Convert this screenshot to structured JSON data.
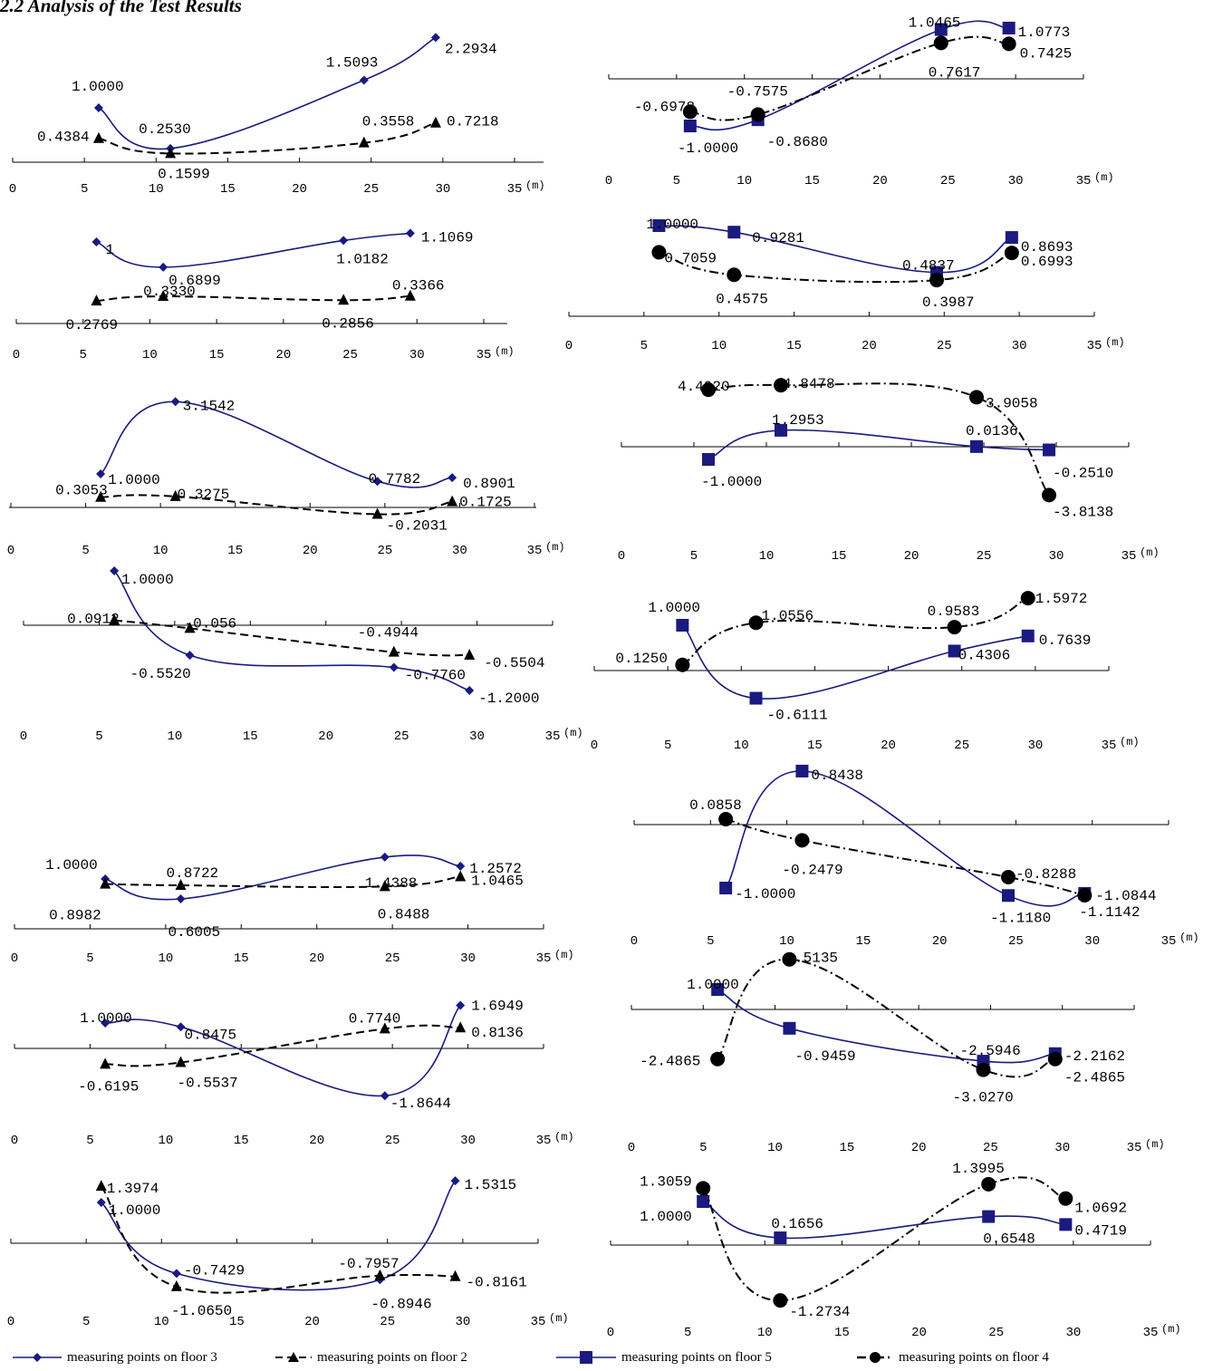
{
  "heading": "2.2 Analysis of the Test Results",
  "colors": {
    "solid": "#1a1a80",
    "dashed": "#000000"
  },
  "legend": [
    {
      "label": "measuring points on floor 3",
      "marker": "diamond",
      "line": "solid"
    },
    {
      "label": "measuring points on floor 2",
      "marker": "triangle",
      "line": "dashed"
    },
    {
      "label": "measuring points on floor 5",
      "marker": "square",
      "line": "solid"
    },
    {
      "label": "measuring points on floor 4",
      "marker": "circle",
      "line": "dashdot"
    }
  ],
  "chart_data": [
    {
      "type": "line",
      "xticks": [
        "0",
        "5",
        "10",
        "15",
        "20",
        "25",
        "30",
        "35"
      ],
      "unit": "(m)",
      "xlim": [
        0,
        35
      ],
      "series": [
        {
          "name": "measuring points on floor 3",
          "x": [
            6,
            11,
            24.5,
            29.5
          ],
          "y": [
            1.0,
            0.253,
            1.5093,
            2.2934
          ],
          "labels": [
            "1.0000",
            "0.2530",
            "1.5093",
            "2.2934"
          ]
        },
        {
          "name": "measuring points on floor 2",
          "x": [
            6,
            11,
            24.5,
            29.5
          ],
          "y": [
            0.4384,
            0.1599,
            0.3558,
            0.7218
          ],
          "labels": [
            "0.4384",
            "0.1599",
            "0.3558",
            "0.7218"
          ]
        }
      ]
    },
    {
      "type": "line",
      "xticks": [
        "0",
        "5",
        "10",
        "15",
        "20",
        "25",
        "30",
        "35"
      ],
      "unit": "(m)",
      "xlim": [
        0,
        35
      ],
      "series": [
        {
          "name": "measuring points on floor 3",
          "x": [
            6,
            11,
            24.5,
            29.5
          ],
          "y": [
            1,
            0.6899,
            1.0182,
            1.1069
          ],
          "labels": [
            "1",
            "0.6899",
            "1.0182",
            "1.1069"
          ]
        },
        {
          "name": "measuring points on floor 2",
          "x": [
            6,
            11,
            24.5,
            29.5
          ],
          "y": [
            0.2769,
            0.333,
            0.2856,
            0.3366
          ],
          "labels": [
            "0.2769",
            "0.3330",
            "0.2856",
            "0.3366"
          ]
        }
      ]
    },
    {
      "type": "line",
      "xticks": [
        "0",
        "5",
        "10",
        "15",
        "20",
        "25",
        "30",
        "35"
      ],
      "unit": "(m)",
      "xlim": [
        0,
        35
      ],
      "series": [
        {
          "name": "measuring points on floor 3",
          "x": [
            6,
            11,
            24.5,
            29.5
          ],
          "y": [
            1.0,
            3.1542,
            0.7782,
            0.8901
          ],
          "labels": [
            "1.0000",
            "3.1542",
            "0.7782",
            "0.8901"
          ]
        },
        {
          "name": "measuring points on floor 2",
          "x": [
            6,
            11,
            24.5,
            29.5
          ],
          "y": [
            0.3053,
            0.3275,
            -0.2031,
            0.1725
          ],
          "labels": [
            "0.3053",
            "0.3275",
            "-0.2031",
            "0.1725"
          ]
        }
      ]
    },
    {
      "type": "line",
      "xticks": [
        "0",
        "5",
        "10",
        "15",
        "20",
        "25",
        "30",
        "35"
      ],
      "unit": "(m)",
      "xlim": [
        0,
        35
      ],
      "series": [
        {
          "name": "measuring points on floor 3",
          "x": [
            6,
            11,
            24.5,
            29.5
          ],
          "y": [
            1.0,
            -0.552,
            -0.776,
            -1.2
          ],
          "labels": [
            "1.0000",
            "-0.5520",
            "-0.7760",
            "-1.2000"
          ]
        },
        {
          "name": "measuring points on floor 2",
          "x": [
            6,
            11,
            24.5,
            29.5
          ],
          "y": [
            0.0912,
            -0.056,
            -0.4944,
            -0.5504
          ],
          "labels": [
            "0.0912",
            "-0.056",
            "-0.4944",
            "-0.5504"
          ]
        }
      ]
    },
    {
      "type": "line",
      "xticks": [
        "0",
        "5",
        "10",
        "15",
        "20",
        "25",
        "30",
        "35"
      ],
      "unit": "(m)",
      "xlim": [
        0,
        35
      ],
      "series": [
        {
          "name": "measuring points on floor 3",
          "x": [
            6,
            11,
            24.5,
            29.5
          ],
          "y": [
            1.0,
            0.6005,
            1.4388,
            1.2572
          ],
          "labels": [
            "1.0000",
            "0.6005",
            "1.4388",
            "1.2572"
          ]
        },
        {
          "name": "measuring points on floor 2",
          "x": [
            6,
            11,
            24.5,
            29.5
          ],
          "y": [
            0.8982,
            0.8722,
            0.8488,
            1.0465
          ],
          "labels": [
            "0.8982",
            "0.8722",
            "0.8488",
            "1.0465"
          ]
        }
      ]
    },
    {
      "type": "line",
      "xticks": [
        "0",
        "5",
        "10",
        "15",
        "20",
        "25",
        "30",
        "35"
      ],
      "unit": "(m)",
      "xlim": [
        0,
        35
      ],
      "series": [
        {
          "name": "measuring points on floor 3",
          "x": [
            6,
            11,
            24.5,
            29.5
          ],
          "y": [
            1.0,
            0.8475,
            -1.8644,
            1.6949
          ],
          "labels": [
            "1.0000",
            "0.8475",
            "-1.8644",
            "1.6949"
          ]
        },
        {
          "name": "measuring points on floor 2",
          "x": [
            6,
            11,
            24.5,
            29.5
          ],
          "y": [
            -0.6195,
            -0.5537,
            0.774,
            0.8136
          ],
          "labels": [
            "-0.6195",
            "-0.5537",
            "0.7740",
            "0.8136"
          ]
        }
      ]
    },
    {
      "type": "line",
      "xticks": [
        "0",
        "5",
        "10",
        "15",
        "20",
        "25",
        "30",
        "35"
      ],
      "unit": "(m)",
      "xlim": [
        0,
        35
      ],
      "series": [
        {
          "name": "measuring points on floor 3",
          "x": [
            6,
            11,
            24.5,
            29.5
          ],
          "y": [
            1.0,
            -0.7429,
            -0.8946,
            1.5315
          ],
          "labels": [
            "1.0000",
            "-0.7429",
            "-0.8946",
            "1.5315"
          ]
        },
        {
          "name": "measuring points on floor 2",
          "x": [
            6,
            11,
            24.5,
            29.5
          ],
          "y": [
            1.3974,
            -1.065,
            -0.7957,
            -0.8161
          ],
          "labels": [
            "1.3974",
            "-1.0650",
            "-0.7957",
            "-0.8161"
          ]
        }
      ]
    },
    {
      "type": "line",
      "xticks": [
        "0",
        "5",
        "10",
        "15",
        "20",
        "25",
        "30",
        "35"
      ],
      "unit": "(m)",
      "xlim": [
        0,
        35
      ],
      "series": [
        {
          "name": "measuring points on floor 5",
          "x": [
            6,
            11,
            24.5,
            29.5
          ],
          "y": [
            -1.0,
            -0.868,
            1.0465,
            1.0773
          ],
          "labels": [
            "-1.0000",
            "-0.8680",
            "1.0465",
            "1.0773"
          ]
        },
        {
          "name": "measuring points on floor 4",
          "x": [
            6,
            11,
            24.5,
            29.5
          ],
          "y": [
            -0.6978,
            -0.7575,
            0.7617,
            0.7425
          ],
          "labels": [
            "-0.6978",
            "-0.7575",
            "0.7617",
            "0.7425"
          ]
        }
      ]
    },
    {
      "type": "line",
      "xticks": [
        "0",
        "5",
        "10",
        "15",
        "20",
        "25",
        "30",
        "35"
      ],
      "unit": "(m)",
      "xlim": [
        0,
        35
      ],
      "series": [
        {
          "name": "measuring points on floor 5",
          "x": [
            6,
            11,
            24.5,
            29.5
          ],
          "y": [
            1.0,
            0.9281,
            0.4837,
            0.8693
          ],
          "labels": [
            "1.0000",
            "0.9281",
            "0.4837",
            "0.8693"
          ]
        },
        {
          "name": "measuring points on floor 4",
          "x": [
            6,
            11,
            24.5,
            29.5
          ],
          "y": [
            0.7059,
            0.4575,
            0.3987,
            0.6993
          ],
          "labels": [
            "0.7059",
            "0.4575",
            "0.3987",
            "0.6993"
          ]
        }
      ]
    },
    {
      "type": "line",
      "xticks": [
        "0",
        "5",
        "10",
        "15",
        "20",
        "25",
        "30",
        "35"
      ],
      "unit": "(m)",
      "xlim": [
        0,
        35
      ],
      "series": [
        {
          "name": "measuring points on floor 5",
          "x": [
            6,
            11,
            24.5,
            29.5
          ],
          "y": [
            -1.0,
            1.2953,
            0.0136,
            -0.251
          ],
          "labels": [
            "-1.0000",
            "1.2953",
            "0.0136",
            "-0.2510"
          ]
        },
        {
          "name": "measuring points on floor 4",
          "x": [
            6,
            11,
            24.5,
            29.5
          ],
          "y": [
            4.492,
            4.8478,
            3.9058,
            -3.8138
          ],
          "labels": [
            "4.4920",
            "4.8478",
            "3.9058",
            "-3.8138"
          ]
        }
      ]
    },
    {
      "type": "line",
      "xticks": [
        "0",
        "5",
        "10",
        "15",
        "20",
        "25",
        "30",
        "35"
      ],
      "unit": "(m)",
      "xlim": [
        0,
        35
      ],
      "series": [
        {
          "name": "measuring points on floor 5",
          "x": [
            6,
            11,
            24.5,
            29.5
          ],
          "y": [
            1.0,
            -0.6111,
            0.4306,
            0.7639
          ],
          "labels": [
            "1.0000",
            "-0.6111",
            "0.4306",
            "0.7639"
          ]
        },
        {
          "name": "measuring points on floor 4",
          "x": [
            6,
            11,
            24.5,
            29.5
          ],
          "y": [
            0.125,
            1.0556,
            0.9583,
            1.5972
          ],
          "labels": [
            "0.1250",
            "1.0556",
            "0.9583",
            "1.5972"
          ]
        }
      ]
    },
    {
      "type": "line",
      "xticks": [
        "0",
        "5",
        "10",
        "15",
        "20",
        "25",
        "30",
        "35"
      ],
      "unit": "(m)",
      "xlim": [
        0,
        35
      ],
      "series": [
        {
          "name": "measuring points on floor 5",
          "x": [
            6,
            11,
            24.5,
            29.5
          ],
          "y": [
            -1.0,
            0.8438,
            -1.118,
            -1.0844
          ],
          "labels": [
            "-1.0000",
            "0.8438",
            "-1.1180",
            "-1.0844"
          ]
        },
        {
          "name": "measuring points on floor 4",
          "x": [
            6,
            11,
            24.5,
            29.5
          ],
          "y": [
            0.0858,
            -0.2479,
            -0.8288,
            -1.1142
          ],
          "labels": [
            "0.0858",
            "-0.2479",
            "-0.8288",
            "-1.1142"
          ]
        }
      ]
    },
    {
      "type": "line",
      "xticks": [
        "0",
        "5",
        "10",
        "15",
        "20",
        "25",
        "30",
        "35"
      ],
      "unit": "(m)",
      "xlim": [
        0,
        35
      ],
      "series": [
        {
          "name": "measuring points on floor 5",
          "x": [
            6,
            11,
            24.5,
            29.5
          ],
          "y": [
            1.0,
            -0.9459,
            -2.5946,
            -2.2162
          ],
          "labels": [
            "1.0000",
            "-0.9459",
            "-2.5946",
            "-2.2162"
          ]
        },
        {
          "name": "measuring points on floor 4",
          "x": [
            6,
            11,
            24.5,
            29.5
          ],
          "y": [
            -2.4865,
            2.5135,
            -3.027,
            -2.4865
          ],
          "labels": [
            "-2.4865",
            "2.5135",
            "-3.0270",
            "-2.4865"
          ]
        }
      ]
    },
    {
      "type": "line",
      "xticks": [
        "0",
        "5",
        "10",
        "15",
        "20",
        "25",
        "30",
        "35"
      ],
      "unit": "(m)",
      "xlim": [
        0,
        35
      ],
      "series": [
        {
          "name": "measuring points on floor 5",
          "x": [
            6,
            11,
            24.5,
            29.5
          ],
          "y": [
            1.0,
            0.1656,
            0.6548,
            0.4719
          ],
          "labels": [
            "1.0000",
            "0.1656",
            "0.6548",
            "0.4719"
          ]
        },
        {
          "name": "measuring points on floor 4",
          "x": [
            6,
            11,
            24.5,
            29.5
          ],
          "y": [
            1.3059,
            -1.2734,
            1.3995,
            1.0692
          ],
          "labels": [
            "1.3059",
            "-1.2734",
            "1.3995",
            "1.0692"
          ]
        }
      ]
    }
  ]
}
